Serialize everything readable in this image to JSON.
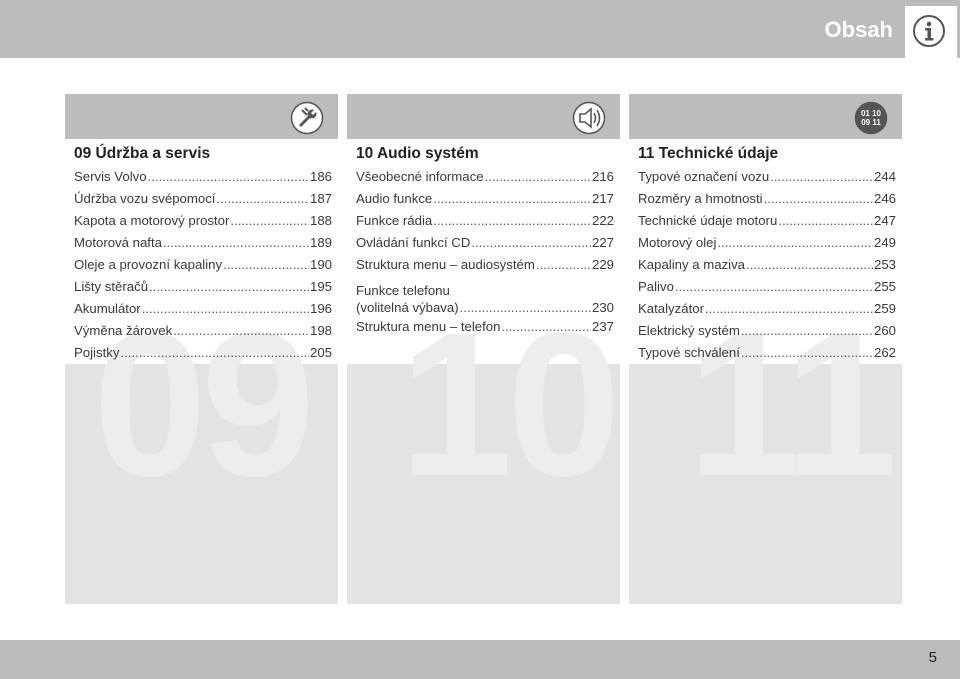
{
  "header": {
    "title": "Obsah",
    "icon": "info-icon"
  },
  "columns": [
    {
      "number": "09",
      "icon": "wrench-icon",
      "title": "09 Údržba a servis",
      "entries": [
        {
          "label": "Servis Volvo",
          "page": "186"
        },
        {
          "label": "Údržba vozu svépomocí",
          "page": "187"
        },
        {
          "label": "Kapota a motorový prostor",
          "page": "188"
        },
        {
          "label": "Motorová nafta",
          "page": "189"
        },
        {
          "label": "Oleje a provozní kapaliny",
          "page": "190"
        },
        {
          "label": "Lišty stěračů",
          "page": "195"
        },
        {
          "label": "Akumulátor",
          "page": "196"
        },
        {
          "label": "Výměna žárovek",
          "page": "198"
        },
        {
          "label": "Pojistky",
          "page": "205"
        }
      ]
    },
    {
      "number": "10",
      "icon": "speaker-icon",
      "title": "10 Audio systém",
      "entries": [
        {
          "label": "Všeobecné informace",
          "page": "216"
        },
        {
          "label": "Audio funkce",
          "page": "217"
        },
        {
          "label": "Funkce rádia",
          "page": "222"
        },
        {
          "label": "Ovládání funkcí CD",
          "page": "227"
        },
        {
          "label": "Struktura menu – audiosystém",
          "page": "229"
        },
        {
          "label_line1": "Funkce telefonu",
          "label_line2": "(volitelná výbava)",
          "page": "230"
        },
        {
          "label": "Struktura menu – telefon",
          "page": "237"
        }
      ]
    },
    {
      "number": "11",
      "icon": "technical-data-icon",
      "icon_text": [
        "01 10",
        "09 11"
      ],
      "title": "11 Technické údaje",
      "entries": [
        {
          "label": "Typové označení vozu",
          "page": "244"
        },
        {
          "label": "Rozměry a hmotnosti",
          "page": "246"
        },
        {
          "label": "Technické údaje motoru",
          "page": "247"
        },
        {
          "label": "Motorový olej",
          "page": "249"
        },
        {
          "label": "Kapaliny a maziva",
          "page": "253"
        },
        {
          "label": "Palivo",
          "page": "255"
        },
        {
          "label": "Katalyzátor",
          "page": "259"
        },
        {
          "label": "Elektrický systém",
          "page": "260"
        },
        {
          "label": "Typové schválení",
          "page": "262"
        }
      ]
    }
  ],
  "footer": {
    "page_number": "5"
  }
}
